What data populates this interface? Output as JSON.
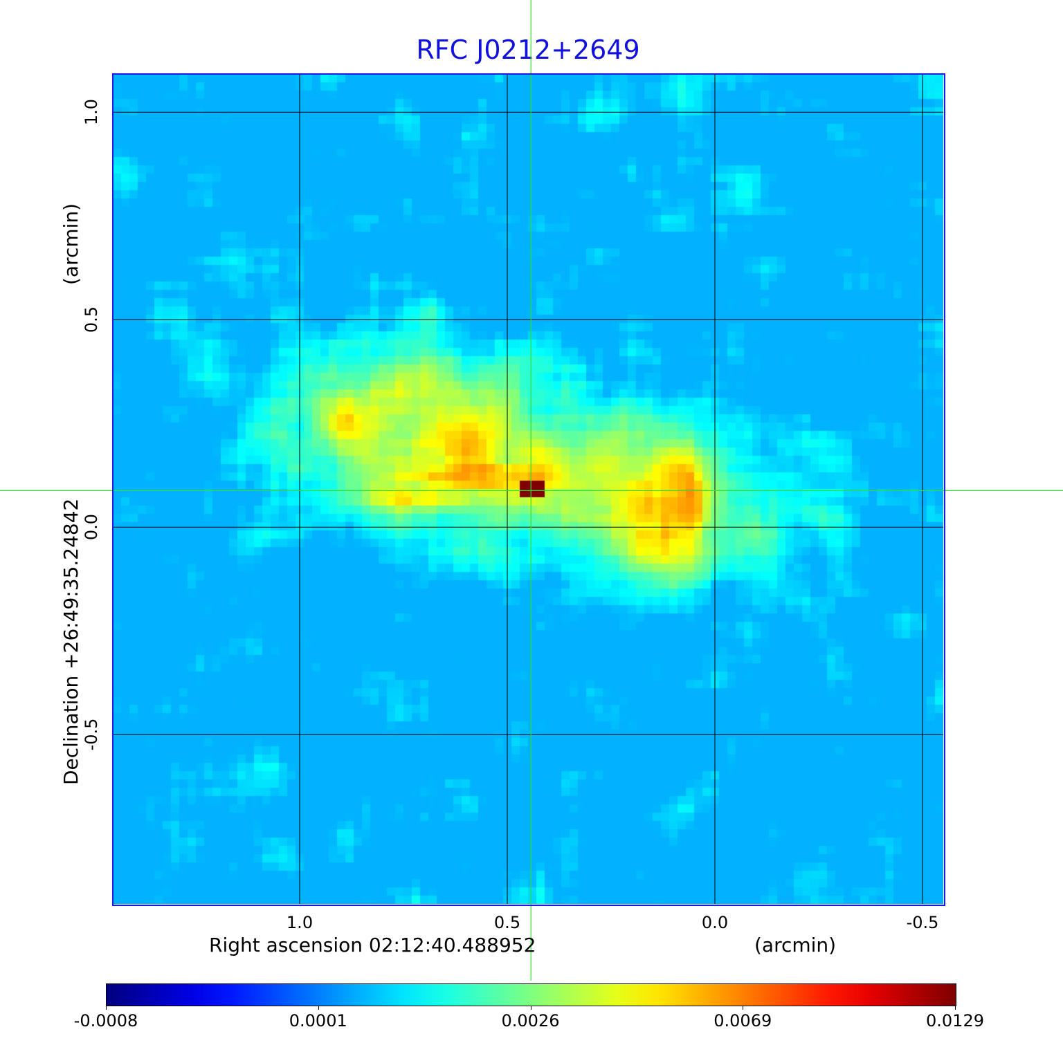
{
  "chart_data": {
    "type": "heatmap",
    "title": "RFC J0212+2649",
    "xlabel": "Right ascension  02:12:40.488952",
    "xunit": "(arcmin)",
    "ylabel": "Declination  +26:49:35.24842",
    "yunit": "(arcmin)",
    "xlim": [
      1.45,
      -0.55
    ],
    "ylim": [
      -0.908,
      1.092
    ],
    "x_ticks": [
      "1.0",
      "0.5",
      "0.0",
      "-0.5"
    ],
    "x_tick_values": [
      1.0,
      0.5,
      0.0,
      -0.5
    ],
    "y_ticks": [
      "1.0",
      "0.5",
      "0.0",
      "-0.5"
    ],
    "y_tick_values": [
      1.0,
      0.5,
      0.0,
      -0.5
    ],
    "grid": true,
    "crosshair": {
      "x": 0.443,
      "y": 0.088,
      "color": "#33dd33"
    },
    "colormap": "jet",
    "colorbar": {
      "placement": "bottom",
      "ticks": [
        "-0.0008",
        "0.0001",
        "0.0026",
        "0.0069",
        "0.0129"
      ],
      "range": [
        -0.0008,
        0.0129
      ]
    },
    "title_color": "#1010e0"
  }
}
